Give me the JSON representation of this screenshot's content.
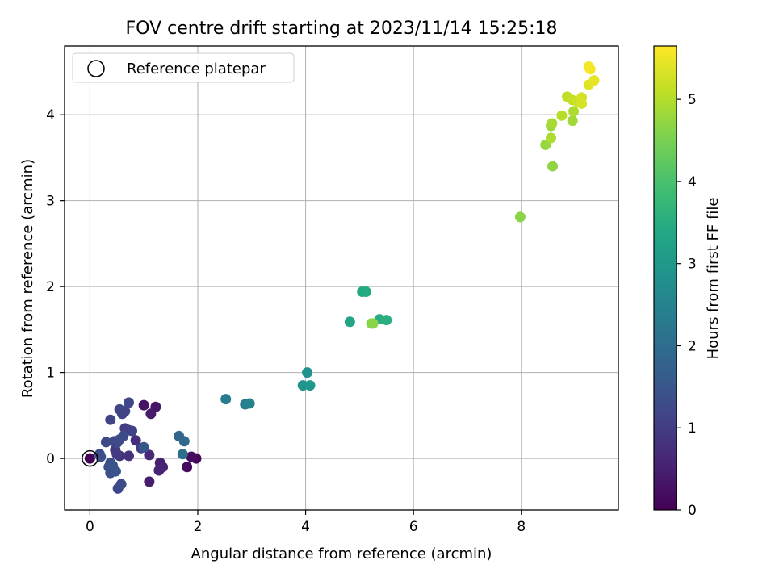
{
  "chart_data": {
    "type": "scatter",
    "title": "FOV centre drift starting at 2023/11/14 15:25:18",
    "xlabel": "Angular distance from reference (arcmin)",
    "ylabel": "Rotation from reference (arcmin)",
    "xlim": [
      -0.47,
      9.8
    ],
    "ylim": [
      -0.6,
      4.8
    ],
    "xticks": [
      0,
      2,
      4,
      6,
      8
    ],
    "yticks": [
      0,
      1,
      2,
      3,
      4
    ],
    "grid": true,
    "legend": {
      "position": "upper-left",
      "entries": [
        "Reference platepar"
      ]
    },
    "reference_point": {
      "x": 0,
      "y": 0
    },
    "colorbar": {
      "label": "Hours from first FF file",
      "range": [
        0,
        5.65
      ],
      "ticks": [
        0,
        1,
        2,
        3,
        4,
        5
      ],
      "colormap": "viridis"
    },
    "series": [
      {
        "points": [
          {
            "x": 0.0,
            "y": 0.0,
            "c": 0.05
          },
          {
            "x": 1.97,
            "y": 0.0,
            "c": 0.1
          },
          {
            "x": 1.8,
            "y": -0.1,
            "c": 0.15
          },
          {
            "x": 1.88,
            "y": 0.02,
            "c": 0.2
          },
          {
            "x": 1.0,
            "y": 0.62,
            "c": 0.3
          },
          {
            "x": 1.22,
            "y": 0.6,
            "c": 0.35
          },
          {
            "x": 1.13,
            "y": 0.52,
            "c": 0.4
          },
          {
            "x": 1.1,
            "y": -0.27,
            "c": 0.45
          },
          {
            "x": 1.3,
            "y": -0.05,
            "c": 0.5
          },
          {
            "x": 1.35,
            "y": -0.1,
            "c": 0.55
          },
          {
            "x": 1.28,
            "y": -0.14,
            "c": 0.6
          },
          {
            "x": 1.1,
            "y": 0.04,
            "c": 0.65
          },
          {
            "x": 0.85,
            "y": 0.21,
            "c": 0.75
          },
          {
            "x": 0.72,
            "y": 0.03,
            "c": 0.8
          },
          {
            "x": 0.55,
            "y": 0.03,
            "c": 0.85
          },
          {
            "x": 0.47,
            "y": 0.1,
            "c": 0.9
          },
          {
            "x": 0.5,
            "y": 0.05,
            "c": 0.95
          },
          {
            "x": 0.95,
            "y": 0.12,
            "c": 1.0
          },
          {
            "x": 0.65,
            "y": 0.35,
            "c": 1.0
          },
          {
            "x": 0.72,
            "y": 0.33,
            "c": 1.05
          },
          {
            "x": 0.78,
            "y": 0.32,
            "c": 1.1
          },
          {
            "x": 0.6,
            "y": 0.52,
            "c": 1.1
          },
          {
            "x": 0.55,
            "y": 0.57,
            "c": 1.15
          },
          {
            "x": 0.65,
            "y": 0.55,
            "c": 1.15
          },
          {
            "x": 0.72,
            "y": 0.65,
            "c": 1.2
          },
          {
            "x": 0.38,
            "y": 0.45,
            "c": 1.15
          },
          {
            "x": 0.45,
            "y": 0.2,
            "c": 1.2
          },
          {
            "x": 0.5,
            "y": 0.18,
            "c": 1.25
          },
          {
            "x": 0.3,
            "y": 0.19,
            "c": 1.25
          },
          {
            "x": 0.62,
            "y": 0.26,
            "c": 1.3
          },
          {
            "x": 0.55,
            "y": 0.22,
            "c": 1.3
          },
          {
            "x": 0.38,
            "y": -0.05,
            "c": 1.35
          },
          {
            "x": 0.35,
            "y": -0.1,
            "c": 1.35
          },
          {
            "x": 0.38,
            "y": -0.17,
            "c": 1.4
          },
          {
            "x": 0.45,
            "y": -0.14,
            "c": 1.4
          },
          {
            "x": 0.42,
            "y": -0.08,
            "c": 1.45
          },
          {
            "x": 0.48,
            "y": -0.15,
            "c": 1.45
          },
          {
            "x": 0.52,
            "y": -0.35,
            "c": 1.2
          },
          {
            "x": 0.58,
            "y": -0.3,
            "c": 1.3
          },
          {
            "x": 0.18,
            "y": 0.05,
            "c": 1.3
          },
          {
            "x": 0.2,
            "y": 0.02,
            "c": 1.35
          },
          {
            "x": 1.0,
            "y": 0.13,
            "c": 1.5
          },
          {
            "x": 1.65,
            "y": 0.26,
            "c": 1.8
          },
          {
            "x": 1.75,
            "y": 0.2,
            "c": 1.9
          },
          {
            "x": 1.72,
            "y": 0.05,
            "c": 2.05
          },
          {
            "x": 2.52,
            "y": 0.69,
            "c": 2.35
          },
          {
            "x": 2.88,
            "y": 0.63,
            "c": 2.4
          },
          {
            "x": 2.96,
            "y": 0.64,
            "c": 2.5
          },
          {
            "x": 4.03,
            "y": 1.0,
            "c": 2.85
          },
          {
            "x": 3.95,
            "y": 0.85,
            "c": 2.9
          },
          {
            "x": 4.08,
            "y": 0.85,
            "c": 2.95
          },
          {
            "x": 4.82,
            "y": 1.59,
            "c": 3.3
          },
          {
            "x": 5.05,
            "y": 1.94,
            "c": 3.4
          },
          {
            "x": 5.12,
            "y": 1.94,
            "c": 3.45
          },
          {
            "x": 5.37,
            "y": 1.62,
            "c": 3.5
          },
          {
            "x": 5.5,
            "y": 1.61,
            "c": 3.55
          },
          {
            "x": 5.22,
            "y": 1.57,
            "c": 4.6
          },
          {
            "x": 5.25,
            "y": 1.57,
            "c": 4.65
          },
          {
            "x": 7.98,
            "y": 2.81,
            "c": 4.65
          },
          {
            "x": 8.58,
            "y": 3.4,
            "c": 4.7
          },
          {
            "x": 8.45,
            "y": 3.65,
            "c": 4.75
          },
          {
            "x": 8.55,
            "y": 3.73,
            "c": 4.95
          },
          {
            "x": 8.55,
            "y": 3.87,
            "c": 4.8
          },
          {
            "x": 8.57,
            "y": 3.9,
            "c": 4.9
          },
          {
            "x": 8.95,
            "y": 3.93,
            "c": 4.85
          },
          {
            "x": 8.97,
            "y": 4.04,
            "c": 4.95
          },
          {
            "x": 8.75,
            "y": 3.99,
            "c": 5.05
          },
          {
            "x": 8.85,
            "y": 4.21,
            "c": 5.1
          },
          {
            "x": 8.95,
            "y": 4.17,
            "c": 5.15
          },
          {
            "x": 9.05,
            "y": 4.15,
            "c": 5.2
          },
          {
            "x": 9.12,
            "y": 4.2,
            "c": 5.25
          },
          {
            "x": 9.12,
            "y": 4.13,
            "c": 5.3
          },
          {
            "x": 9.25,
            "y": 4.35,
            "c": 5.4
          },
          {
            "x": 9.35,
            "y": 4.4,
            "c": 5.45
          },
          {
            "x": 9.25,
            "y": 4.56,
            "c": 5.55
          },
          {
            "x": 9.28,
            "y": 4.53,
            "c": 5.6
          }
        ]
      }
    ]
  }
}
